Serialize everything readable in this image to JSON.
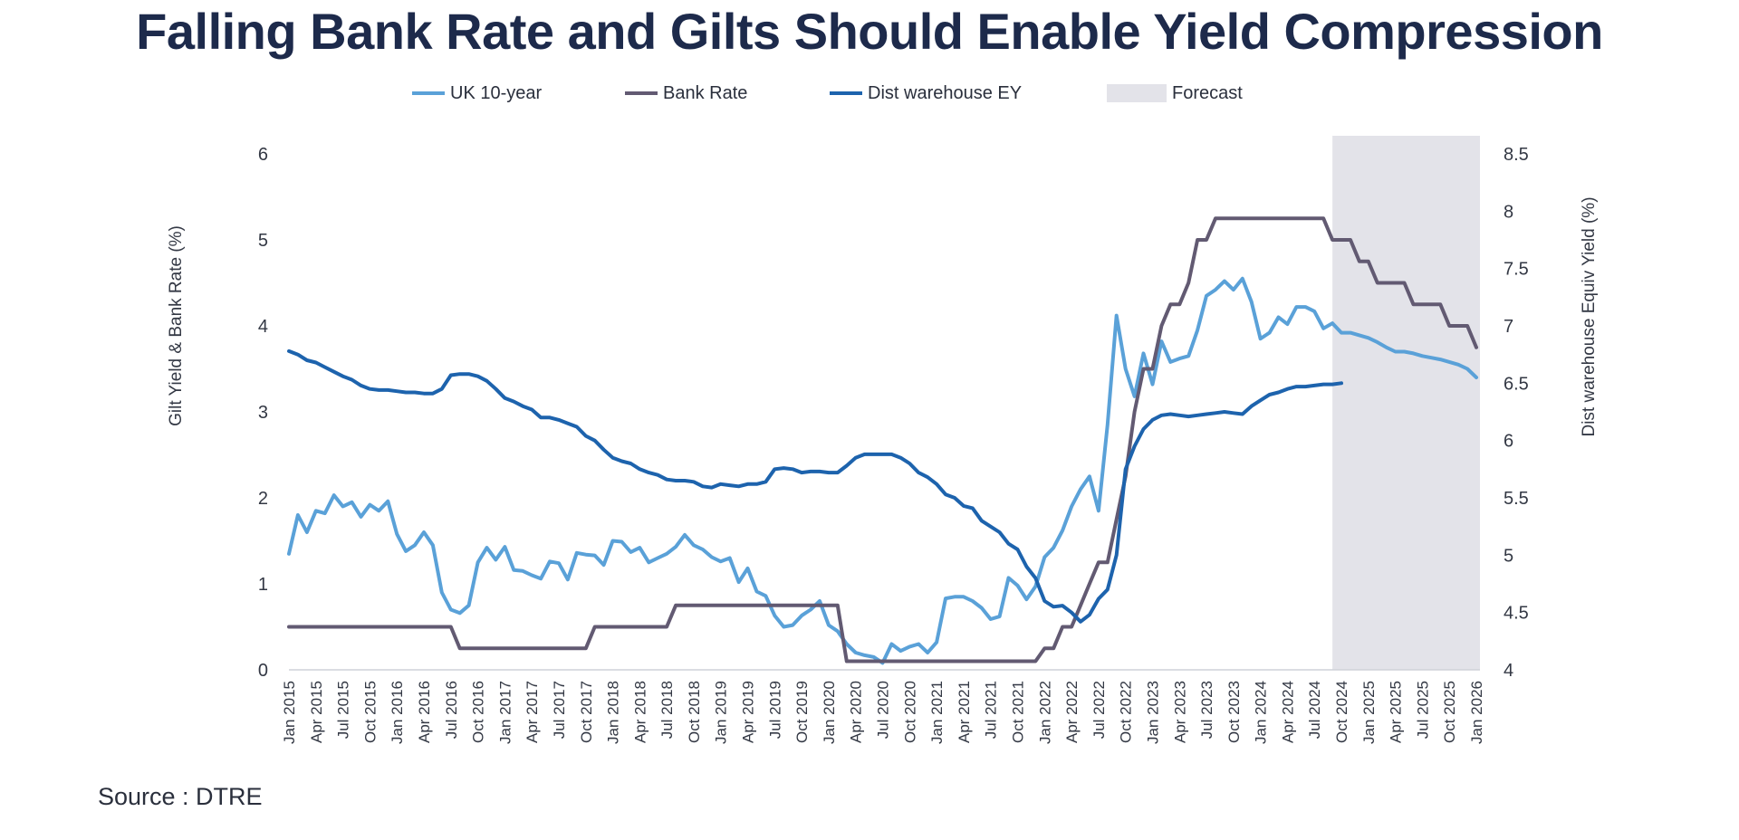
{
  "title": "Falling Bank Rate and Gilts Should Enable Yield Compression",
  "source": "Source : DTRE",
  "colors": {
    "uk10": "#5aa1d8",
    "bank": "#625a72",
    "dist": "#1d63ad",
    "forecast": "#e3e3e9",
    "axis": "#cfd2d8"
  },
  "chart_data": {
    "type": "line",
    "title": "Falling Bank Rate and Gilts Should Enable Yield Compression",
    "x_range": [
      "Jan 2015",
      "Jan 2026"
    ],
    "x_tick_labels": [
      "Jan 2015",
      "Apr 2015",
      "Jul 2015",
      "Oct 2015",
      "Jan 2016",
      "Apr 2016",
      "Jul 2016",
      "Oct 2016",
      "Jan 2017",
      "Apr 2017",
      "Jul 2017",
      "Oct 2017",
      "Jan 2018",
      "Apr 2018",
      "Jul 2018",
      "Oct 2018",
      "Jan 2019",
      "Apr 2019",
      "Jul 2019",
      "Oct 2019",
      "Jan 2020",
      "Apr 2020",
      "Jul 2020",
      "Oct 2020",
      "Jan 2021",
      "Apr 2021",
      "Jul 2021",
      "Oct 2021",
      "Jan 2022",
      "Apr 2022",
      "Jul 2022",
      "Oct 2022",
      "Jan 2023",
      "Apr 2023",
      "Jul 2023",
      "Oct 2023",
      "Jan 2024",
      "Apr 2024",
      "Jul 2024",
      "Oct 2024",
      "Jan 2025",
      "Apr 2025",
      "Jul 2025",
      "Oct 2025",
      "Jan 2026"
    ],
    "y_left": {
      "label": "Gilt Yield & Bank Rate (%)",
      "min": 0,
      "max": 6,
      "ticks": [
        "0",
        "1",
        "2",
        "3",
        "4",
        "5",
        "6"
      ]
    },
    "y_right": {
      "label": "Dist warehouse Equiv Yield (%)",
      "min": 4,
      "max": 8.5,
      "ticks": [
        "4",
        "4.5",
        "5",
        "5.5",
        "6",
        "6.5",
        "7",
        "7.5",
        "8",
        "8.5"
      ]
    },
    "forecast": {
      "label": "Forecast",
      "start_month": 116,
      "end_month": 132
    },
    "legend": [
      "UK 10-year",
      "Bank Rate",
      "Dist warehouse EY",
      "Forecast"
    ],
    "series": [
      {
        "name": "UK 10-year",
        "axis": "left",
        "points": [
          [
            0,
            1.35
          ],
          [
            1,
            1.8
          ],
          [
            2,
            1.6
          ],
          [
            3,
            1.85
          ],
          [
            4,
            1.82
          ],
          [
            5,
            2.03
          ],
          [
            6,
            1.9
          ],
          [
            7,
            1.95
          ],
          [
            8,
            1.78
          ],
          [
            9,
            1.92
          ],
          [
            10,
            1.85
          ],
          [
            11,
            1.96
          ],
          [
            12,
            1.58
          ],
          [
            13,
            1.38
          ],
          [
            14,
            1.45
          ],
          [
            15,
            1.6
          ],
          [
            16,
            1.45
          ],
          [
            17,
            0.9
          ],
          [
            18,
            0.7
          ],
          [
            19,
            0.66
          ],
          [
            20,
            0.75
          ],
          [
            21,
            1.25
          ],
          [
            22,
            1.42
          ],
          [
            23,
            1.28
          ],
          [
            24,
            1.43
          ],
          [
            25,
            1.16
          ],
          [
            26,
            1.15
          ],
          [
            27,
            1.1
          ],
          [
            28,
            1.06
          ],
          [
            29,
            1.26
          ],
          [
            30,
            1.24
          ],
          [
            31,
            1.05
          ],
          [
            32,
            1.36
          ],
          [
            33,
            1.34
          ],
          [
            34,
            1.33
          ],
          [
            35,
            1.22
          ],
          [
            36,
            1.5
          ],
          [
            37,
            1.49
          ],
          [
            38,
            1.37
          ],
          [
            39,
            1.42
          ],
          [
            40,
            1.25
          ],
          [
            41,
            1.3
          ],
          [
            42,
            1.35
          ],
          [
            43,
            1.43
          ],
          [
            44,
            1.57
          ],
          [
            45,
            1.45
          ],
          [
            46,
            1.4
          ],
          [
            47,
            1.31
          ],
          [
            48,
            1.26
          ],
          [
            49,
            1.3
          ],
          [
            50,
            1.02
          ],
          [
            51,
            1.18
          ],
          [
            52,
            0.91
          ],
          [
            53,
            0.86
          ],
          [
            54,
            0.63
          ],
          [
            55,
            0.5
          ],
          [
            56,
            0.52
          ],
          [
            57,
            0.63
          ],
          [
            58,
            0.7
          ],
          [
            59,
            0.8
          ],
          [
            60,
            0.52
          ],
          [
            61,
            0.45
          ],
          [
            62,
            0.3
          ],
          [
            63,
            0.2
          ],
          [
            64,
            0.17
          ],
          [
            65,
            0.15
          ],
          [
            66,
            0.08
          ],
          [
            67,
            0.3
          ],
          [
            68,
            0.22
          ],
          [
            69,
            0.27
          ],
          [
            70,
            0.3
          ],
          [
            71,
            0.2
          ],
          [
            72,
            0.32
          ],
          [
            73,
            0.83
          ],
          [
            74,
            0.85
          ],
          [
            75,
            0.85
          ],
          [
            76,
            0.8
          ],
          [
            77,
            0.72
          ],
          [
            78,
            0.59
          ],
          [
            79,
            0.62
          ],
          [
            80,
            1.07
          ],
          [
            81,
            0.98
          ],
          [
            82,
            0.82
          ],
          [
            83,
            0.97
          ],
          [
            84,
            1.31
          ],
          [
            85,
            1.42
          ],
          [
            86,
            1.62
          ],
          [
            87,
            1.9
          ],
          [
            88,
            2.1
          ],
          [
            89,
            2.25
          ],
          [
            90,
            1.85
          ],
          [
            91,
            2.85
          ],
          [
            92,
            4.12
          ],
          [
            93,
            3.5
          ],
          [
            94,
            3.18
          ],
          [
            95,
            3.68
          ],
          [
            96,
            3.32
          ],
          [
            97,
            3.82
          ],
          [
            98,
            3.58
          ],
          [
            99,
            3.62
          ],
          [
            100,
            3.65
          ],
          [
            101,
            3.95
          ],
          [
            102,
            4.35
          ],
          [
            103,
            4.42
          ],
          [
            104,
            4.52
          ],
          [
            105,
            4.42
          ],
          [
            106,
            4.55
          ],
          [
            107,
            4.28
          ],
          [
            108,
            3.85
          ],
          [
            109,
            3.92
          ],
          [
            110,
            4.1
          ],
          [
            111,
            4.02
          ],
          [
            112,
            4.22
          ],
          [
            113,
            4.22
          ],
          [
            114,
            4.17
          ],
          [
            115,
            3.97
          ],
          [
            116,
            4.03
          ],
          [
            117,
            3.92
          ],
          [
            118,
            3.92
          ],
          [
            119,
            3.89
          ],
          [
            120,
            3.86
          ],
          [
            121,
            3.81
          ],
          [
            122,
            3.75
          ],
          [
            123,
            3.7
          ],
          [
            124,
            3.7
          ],
          [
            125,
            3.68
          ],
          [
            126,
            3.65
          ],
          [
            127,
            3.63
          ],
          [
            128,
            3.61
          ],
          [
            129,
            3.58
          ],
          [
            130,
            3.55
          ],
          [
            131,
            3.5
          ],
          [
            132,
            3.4
          ]
        ]
      },
      {
        "name": "Bank Rate",
        "axis": "left",
        "points": [
          [
            0,
            0.5
          ],
          [
            18,
            0.5
          ],
          [
            19,
            0.25
          ],
          [
            33,
            0.25
          ],
          [
            34,
            0.5
          ],
          [
            42,
            0.5
          ],
          [
            43,
            0.75
          ],
          [
            61,
            0.75
          ],
          [
            62,
            0.1
          ],
          [
            82,
            0.1
          ],
          [
            83,
            0.1
          ],
          [
            84,
            0.25
          ],
          [
            85,
            0.25
          ],
          [
            86,
            0.5
          ],
          [
            87,
            0.5
          ],
          [
            88,
            0.75
          ],
          [
            89,
            1.0
          ],
          [
            90,
            1.25
          ],
          [
            91,
            1.25
          ],
          [
            92,
            1.75
          ],
          [
            93,
            2.25
          ],
          [
            94,
            3.0
          ],
          [
            95,
            3.5
          ],
          [
            96,
            3.5
          ],
          [
            97,
            4.0
          ],
          [
            98,
            4.25
          ],
          [
            99,
            4.25
          ],
          [
            100,
            4.5
          ],
          [
            101,
            5.0
          ],
          [
            102,
            5.0
          ],
          [
            103,
            5.25
          ],
          [
            115,
            5.25
          ],
          [
            116,
            5.0
          ],
          [
            118,
            5.0
          ],
          [
            119,
            4.75
          ],
          [
            120,
            4.75
          ],
          [
            121,
            4.5
          ],
          [
            124,
            4.5
          ],
          [
            125,
            4.25
          ],
          [
            128,
            4.25
          ],
          [
            129,
            4.0
          ],
          [
            131,
            4.0
          ],
          [
            132,
            3.75
          ]
        ]
      },
      {
        "name": "Dist warehouse EY",
        "axis": "right",
        "points": [
          [
            0,
            6.78
          ],
          [
            1,
            6.75
          ],
          [
            2,
            6.7
          ],
          [
            3,
            6.68
          ],
          [
            4,
            6.64
          ],
          [
            5,
            6.6
          ],
          [
            6,
            6.56
          ],
          [
            7,
            6.53
          ],
          [
            8,
            6.48
          ],
          [
            9,
            6.45
          ],
          [
            10,
            6.44
          ],
          [
            11,
            6.44
          ],
          [
            12,
            6.43
          ],
          [
            13,
            6.42
          ],
          [
            14,
            6.42
          ],
          [
            15,
            6.41
          ],
          [
            16,
            6.41
          ],
          [
            17,
            6.45
          ],
          [
            18,
            6.57
          ],
          [
            19,
            6.58
          ],
          [
            20,
            6.58
          ],
          [
            21,
            6.56
          ],
          [
            22,
            6.52
          ],
          [
            23,
            6.45
          ],
          [
            24,
            6.37
          ],
          [
            25,
            6.34
          ],
          [
            26,
            6.3
          ],
          [
            27,
            6.27
          ],
          [
            28,
            6.2
          ],
          [
            29,
            6.2
          ],
          [
            30,
            6.18
          ],
          [
            31,
            6.15
          ],
          [
            32,
            6.12
          ],
          [
            33,
            6.04
          ],
          [
            34,
            6.0
          ],
          [
            35,
            5.92
          ],
          [
            36,
            5.85
          ],
          [
            37,
            5.82
          ],
          [
            38,
            5.8
          ],
          [
            39,
            5.75
          ],
          [
            40,
            5.72
          ],
          [
            41,
            5.7
          ],
          [
            42,
            5.66
          ],
          [
            43,
            5.65
          ],
          [
            44,
            5.65
          ],
          [
            45,
            5.64
          ],
          [
            46,
            5.6
          ],
          [
            47,
            5.59
          ],
          [
            48,
            5.62
          ],
          [
            49,
            5.61
          ],
          [
            50,
            5.6
          ],
          [
            51,
            5.62
          ],
          [
            52,
            5.62
          ],
          [
            53,
            5.64
          ],
          [
            54,
            5.75
          ],
          [
            55,
            5.76
          ],
          [
            56,
            5.75
          ],
          [
            57,
            5.72
          ],
          [
            58,
            5.73
          ],
          [
            59,
            5.73
          ],
          [
            60,
            5.72
          ],
          [
            61,
            5.72
          ],
          [
            62,
            5.78
          ],
          [
            63,
            5.85
          ],
          [
            64,
            5.88
          ],
          [
            65,
            5.88
          ],
          [
            66,
            5.88
          ],
          [
            67,
            5.88
          ],
          [
            68,
            5.85
          ],
          [
            69,
            5.8
          ],
          [
            70,
            5.72
          ],
          [
            71,
            5.68
          ],
          [
            72,
            5.62
          ],
          [
            73,
            5.53
          ],
          [
            74,
            5.5
          ],
          [
            75,
            5.43
          ],
          [
            76,
            5.41
          ],
          [
            77,
            5.3
          ],
          [
            78,
            5.25
          ],
          [
            79,
            5.2
          ],
          [
            80,
            5.1
          ],
          [
            81,
            5.05
          ],
          [
            82,
            4.9
          ],
          [
            83,
            4.8
          ],
          [
            84,
            4.6
          ],
          [
            85,
            4.55
          ],
          [
            86,
            4.56
          ],
          [
            87,
            4.5
          ],
          [
            88,
            4.42
          ],
          [
            89,
            4.48
          ],
          [
            90,
            4.62
          ],
          [
            91,
            4.7
          ],
          [
            92,
            5.0
          ],
          [
            93,
            5.75
          ],
          [
            94,
            5.95
          ],
          [
            95,
            6.1
          ],
          [
            96,
            6.18
          ],
          [
            97,
            6.22
          ],
          [
            98,
            6.23
          ],
          [
            99,
            6.22
          ],
          [
            100,
            6.21
          ],
          [
            101,
            6.22
          ],
          [
            102,
            6.23
          ],
          [
            103,
            6.24
          ],
          [
            104,
            6.25
          ],
          [
            105,
            6.24
          ],
          [
            106,
            6.23
          ],
          [
            107,
            6.3
          ],
          [
            108,
            6.35
          ],
          [
            109,
            6.4
          ],
          [
            110,
            6.42
          ],
          [
            111,
            6.45
          ],
          [
            112,
            6.47
          ],
          [
            113,
            6.47
          ],
          [
            114,
            6.48
          ],
          [
            115,
            6.49
          ],
          [
            116,
            6.49
          ],
          [
            117,
            6.5
          ]
        ]
      }
    ]
  }
}
